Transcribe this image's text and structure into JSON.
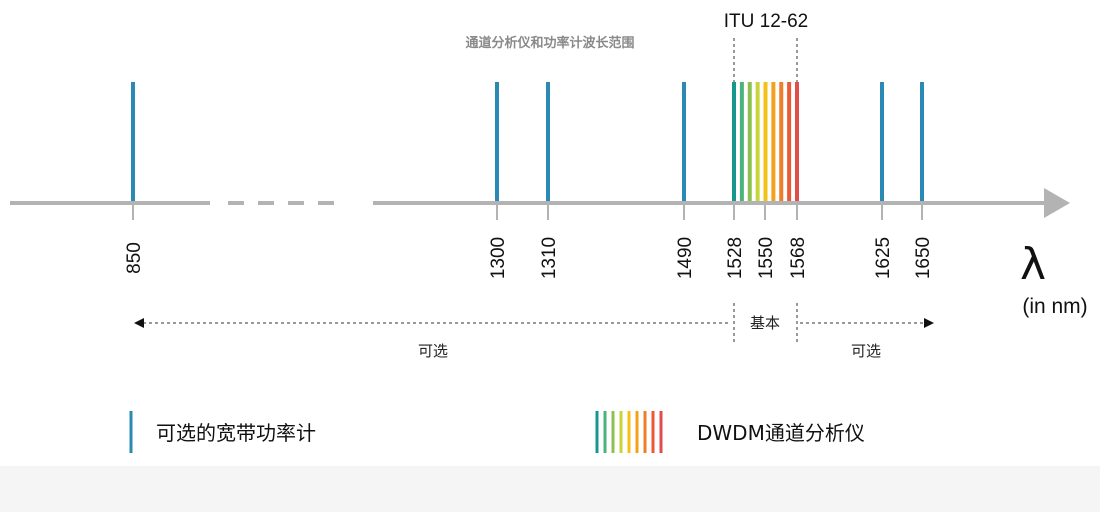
{
  "wavelength_marks": [
    {
      "value": 850,
      "label": "850",
      "type": "broadband"
    },
    {
      "value": 1300,
      "label": "1300",
      "type": "broadband"
    },
    {
      "value": 1310,
      "label": "1310",
      "type": "broadband"
    },
    {
      "value": 1490,
      "label": "1490",
      "type": "broadband"
    },
    {
      "value": 1528,
      "label": "1528",
      "type": "dwdm-edge"
    },
    {
      "value": 1550,
      "label": "1550",
      "type": "dwdm"
    },
    {
      "value": 1568,
      "label": "1568",
      "type": "dwdm-edge"
    },
    {
      "value": 1625,
      "label": "1625",
      "type": "broadband"
    },
    {
      "value": 1650,
      "label": "1650",
      "type": "broadband"
    }
  ],
  "dwdm_band": {
    "label": "ITU 12-62",
    "start": 1528,
    "end": 1568,
    "colors": [
      "#17988f",
      "#4cb27c",
      "#8cc152",
      "#c6d53a",
      "#f2c314",
      "#f3a11c",
      "#ef7d29",
      "#ea5b35",
      "#e24c4c"
    ]
  },
  "axis": {
    "symbol": "λ",
    "unit": "(in nm)",
    "line_color": "#b3b3b3"
  },
  "ranges": {
    "optional_left": "可选",
    "basic": "基本",
    "optional_right": "可选"
  },
  "legend": {
    "broadband_label": "可选的宽带功率计",
    "broadband_color": "#2a8ab5",
    "dwdm_label": "DWDM通道分析仪"
  },
  "caption": "通道分析仪和功率计波长范围"
}
